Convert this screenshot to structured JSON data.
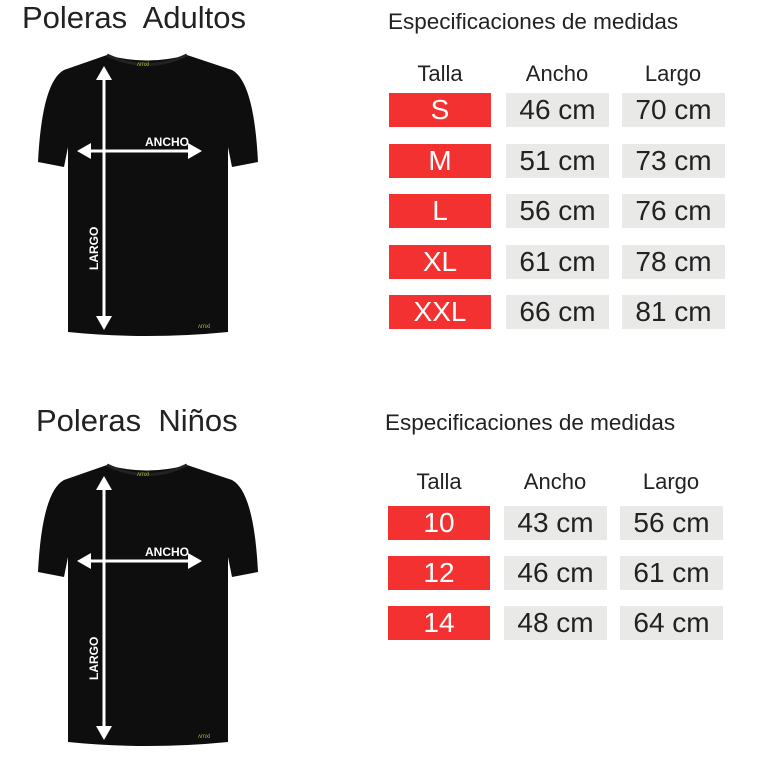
{
  "adults": {
    "title": "Poleras  Adultos",
    "spec_title": "Especificaciones de medidas",
    "headers": [
      "Talla",
      "Ancho",
      "Largo"
    ],
    "rows": [
      {
        "size": "S",
        "ancho": "46 cm",
        "largo": "70 cm"
      },
      {
        "size": "M",
        "ancho": "51 cm",
        "largo": "73 cm"
      },
      {
        "size": "L",
        "ancho": "56 cm",
        "largo": "76 cm"
      },
      {
        "size": "XL",
        "ancho": "61 cm",
        "largo": "78 cm"
      },
      {
        "size": "XXL",
        "ancho": "66 cm",
        "largo": "81 cm"
      }
    ],
    "shirt_labels": {
      "width": "ANCHO",
      "length": "LARGO"
    }
  },
  "kids": {
    "title": "Poleras  Niños",
    "spec_title": "Especificaciones de medidas",
    "headers": [
      "Talla",
      "Ancho",
      "Largo"
    ],
    "rows": [
      {
        "size": "10",
        "ancho": "43 cm",
        "largo": "56 cm"
      },
      {
        "size": "12",
        "ancho": "46 cm",
        "largo": "61 cm"
      },
      {
        "size": "14",
        "ancho": "48 cm",
        "largo": "64 cm"
      }
    ],
    "shirt_labels": {
      "width": "ANCHO",
      "length": "LARGO"
    }
  },
  "colors": {
    "size_cell": "#f33131",
    "measure_cell": "#e9e9e8",
    "shirt": "#0e0e0e",
    "logo": "#8fb52a"
  }
}
